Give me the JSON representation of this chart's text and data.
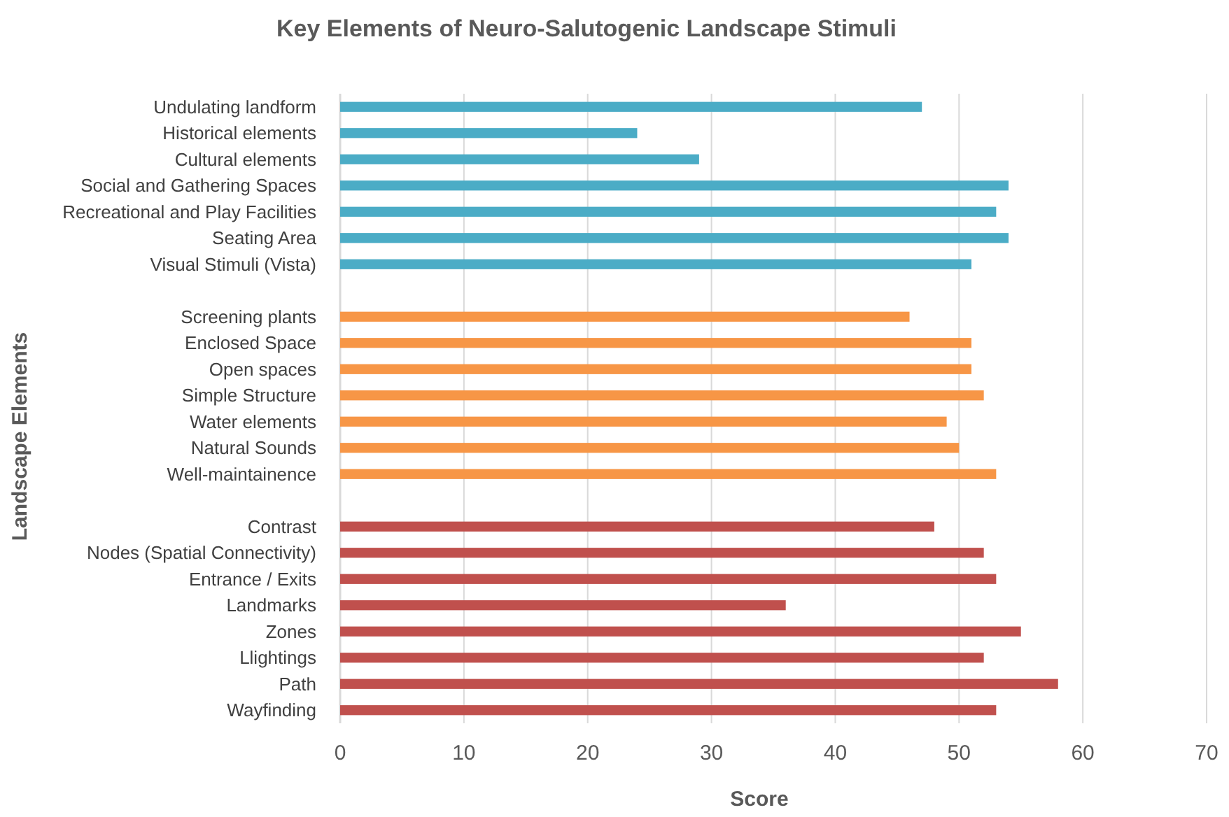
{
  "chart_data": {
    "type": "bar",
    "orientation": "horizontal",
    "title": "Key Elements of Neuro-Salutogenic Landscape Stimuli",
    "xlabel": "Score",
    "ylabel": "Landscape Elements",
    "categories": [
      "Undulating landform",
      "Historical elements",
      "Cultural elements",
      "Social and Gathering Spaces",
      "Recreational and Play Facilities",
      "Seating Area",
      "Visual Stimuli (Vista)",
      null,
      "Screening plants",
      "Enclosed Space",
      "Open spaces",
      "Simple Structure",
      "Water elements",
      "Natural Sounds",
      "Well-maintainence",
      null,
      "Contrast",
      "Nodes (Spatial Connectivity)",
      "Entrance / Exits",
      "Landmarks",
      "Zones",
      "Llightings",
      "Path",
      "Wayfinding"
    ],
    "values": [
      47,
      24,
      29,
      54,
      53,
      54,
      51,
      null,
      46,
      51,
      51,
      52,
      49,
      50,
      53,
      null,
      48,
      52,
      53,
      36,
      55,
      52,
      58,
      53
    ],
    "colors": [
      "#4bacc6",
      "#4bacc6",
      "#4bacc6",
      "#4bacc6",
      "#4bacc6",
      "#4bacc6",
      "#4bacc6",
      null,
      "#f79646",
      "#f79646",
      "#f79646",
      "#f79646",
      "#f79646",
      "#f79646",
      "#f79646",
      null,
      "#c0504d",
      "#c0504d",
      "#c0504d",
      "#c0504d",
      "#c0504d",
      "#c0504d",
      "#c0504d",
      "#c0504d"
    ],
    "xlim": [
      0,
      70
    ],
    "xticks": [
      0,
      10,
      20,
      30,
      40,
      50,
      60,
      70
    ],
    "grid": "x"
  }
}
